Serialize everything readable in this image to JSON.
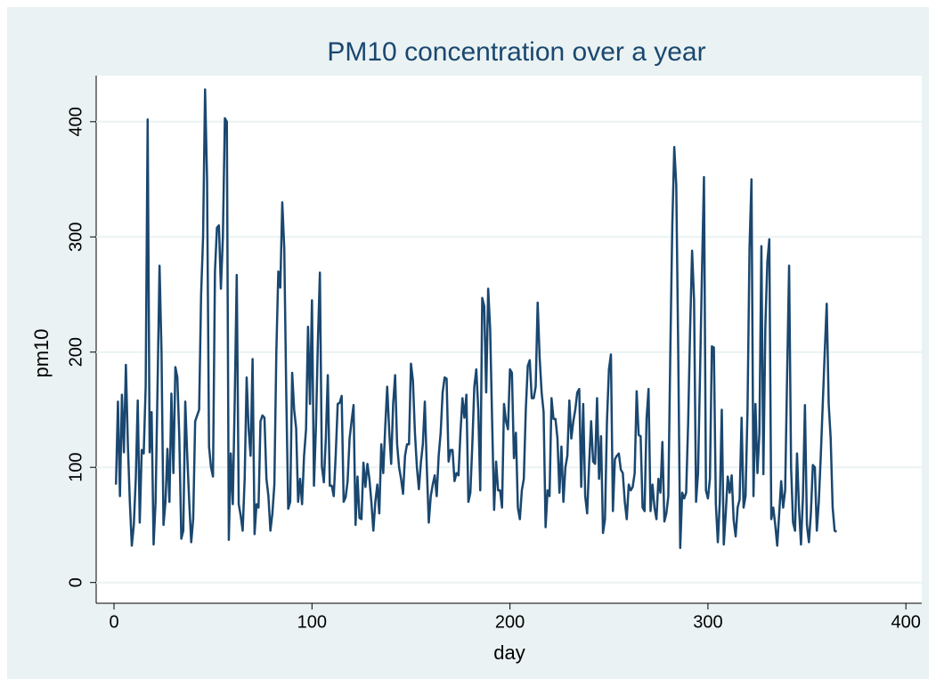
{
  "chart_data": {
    "type": "line",
    "title": "PM10 concentration over a year",
    "x_label": "day",
    "y_label": "pm10",
    "x": [
      1,
      2,
      3,
      4,
      5,
      6,
      7,
      8,
      9,
      10,
      11,
      12,
      13,
      14,
      15,
      16,
      17,
      18,
      19,
      20,
      21,
      22,
      23,
      24,
      25,
      26,
      27,
      28,
      29,
      30,
      31,
      32,
      33,
      34,
      35,
      36,
      37,
      38,
      39,
      40,
      41,
      42,
      43,
      44,
      45,
      46,
      47,
      48,
      49,
      50,
      51,
      52,
      53,
      54,
      55,
      56,
      57,
      58,
      59,
      60,
      61,
      62,
      63,
      64,
      65,
      66,
      67,
      68,
      69,
      70,
      71,
      72,
      73,
      74,
      75,
      76,
      77,
      78,
      79,
      80,
      81,
      82,
      83,
      84,
      85,
      86,
      87,
      88,
      89,
      90,
      91,
      92,
      93,
      94,
      95,
      96,
      97,
      98,
      99,
      100,
      101,
      102,
      103,
      104,
      105,
      106,
      107,
      108,
      109,
      110,
      111,
      112,
      113,
      114,
      115,
      116,
      117,
      118,
      119,
      120,
      121,
      122,
      123,
      124,
      125,
      126,
      127,
      128,
      129,
      130,
      131,
      132,
      133,
      134,
      135,
      136,
      137,
      138,
      139,
      140,
      141,
      142,
      143,
      144,
      145,
      146,
      147,
      148,
      149,
      150,
      151,
      152,
      153,
      154,
      155,
      156,
      157,
      158,
      159,
      160,
      161,
      162,
      163,
      164,
      165,
      166,
      167,
      168,
      169,
      170,
      171,
      172,
      173,
      174,
      175,
      176,
      177,
      178,
      179,
      180,
      181,
      182,
      183,
      184,
      185,
      186,
      187,
      188,
      189,
      190,
      191,
      192,
      193,
      194,
      195,
      196,
      197,
      198,
      199,
      200,
      201,
      202,
      203,
      204,
      205,
      206,
      207,
      208,
      209,
      210,
      211,
      212,
      213,
      214,
      215,
      216,
      217,
      218,
      219,
      220,
      221,
      222,
      223,
      224,
      225,
      226,
      227,
      228,
      229,
      230,
      231,
      232,
      233,
      234,
      235,
      236,
      237,
      238,
      239,
      240,
      241,
      242,
      243,
      244,
      245,
      246,
      247,
      248,
      249,
      250,
      251,
      252,
      253,
      254,
      255,
      256,
      257,
      258,
      259,
      260,
      261,
      262,
      263,
      264,
      265,
      266,
      267,
      268,
      269,
      270,
      271,
      272,
      273,
      274,
      275,
      276,
      277,
      278,
      279,
      280,
      281,
      282,
      283,
      284,
      285,
      286,
      287,
      288,
      289,
      290,
      291,
      292,
      293,
      294,
      295,
      296,
      297,
      298,
      299,
      300,
      301,
      302,
      303,
      304,
      305,
      306,
      307,
      308,
      309,
      310,
      311,
      312,
      313,
      314,
      315,
      316,
      317,
      318,
      319,
      320,
      321,
      322,
      323,
      324,
      325,
      326,
      327,
      328,
      329,
      330,
      331,
      332,
      333,
      334,
      335,
      336,
      337,
      338,
      339,
      340,
      341,
      342,
      343,
      344,
      345,
      346,
      347,
      348,
      349,
      350,
      351,
      352,
      353,
      354,
      355,
      356,
      357,
      358,
      359,
      360,
      361,
      362,
      363,
      364,
      365
    ],
    "series": [
      {
        "name": "pm10",
        "color": "#1a476f",
        "values": [
          85,
          157,
          75,
          163,
          113,
          189,
          120,
          70,
          32,
          50,
          90,
          158,
          52,
          115,
          112,
          170,
          402,
          113,
          148,
          33,
          70,
          170,
          275,
          200,
          50,
          70,
          116,
          70,
          164,
          95,
          187,
          178,
          125,
          38,
          45,
          157,
          110,
          70,
          35,
          55,
          140,
          145,
          150,
          250,
          300,
          428,
          350,
          118,
          100,
          92,
          270,
          308,
          310,
          255,
          300,
          403,
          400,
          37,
          112,
          68,
          160,
          267,
          68,
          58,
          45,
          90,
          178,
          133,
          110,
          194,
          42,
          68,
          65,
          140,
          145,
          143,
          90,
          75,
          45,
          60,
          85,
          200,
          270,
          256,
          330,
          290,
          165,
          64,
          70,
          182,
          150,
          134,
          70,
          90,
          68,
          110,
          133,
          222,
          155,
          245,
          84,
          135,
          210,
          269,
          101,
          87,
          125,
          180,
          84,
          84,
          75,
          111,
          155,
          156,
          162,
          70,
          74,
          88,
          125,
          140,
          154,
          50,
          92,
          56,
          55,
          104,
          83,
          103,
          90,
          70,
          45,
          70,
          85,
          60,
          120,
          95,
          135,
          170,
          132,
          103,
          155,
          180,
          120,
          100,
          90,
          77,
          110,
          120,
          120,
          190,
          175,
          130,
          100,
          81,
          104,
          120,
          157,
          100,
          52,
          75,
          85,
          93,
          75,
          110,
          130,
          165,
          178,
          177,
          105,
          115,
          115,
          88,
          95,
          93,
          130,
          160,
          143,
          163,
          70,
          78,
          120,
          170,
          185,
          150,
          80,
          247,
          240,
          165,
          255,
          220,
          140,
          63,
          105,
          80,
          80,
          65,
          155,
          140,
          133,
          185,
          182,
          108,
          130,
          65,
          55,
          80,
          90,
          150,
          188,
          193,
          160,
          160,
          170,
          243,
          195,
          165,
          148,
          48,
          80,
          75,
          160,
          142,
          142,
          125,
          78,
          118,
          70,
          100,
          110,
          158,
          125,
          140,
          150,
          165,
          168,
          83,
          155,
          75,
          60,
          103,
          140,
          105,
          103,
          160,
          90,
          127,
          43,
          55,
          140,
          185,
          198,
          62,
          107,
          110,
          112,
          98,
          95,
          70,
          55,
          85,
          80,
          83,
          95,
          166,
          128,
          127,
          65,
          62,
          142,
          168,
          62,
          85,
          65,
          55,
          90,
          78,
          122,
          53,
          60,
          75,
          200,
          310,
          378,
          345,
          200,
          30,
          78,
          73,
          78,
          138,
          220,
          288,
          245,
          70,
          95,
          180,
          270,
          352,
          80,
          73,
          90,
          205,
          204,
          68,
          35,
          70,
          150,
          33,
          60,
          92,
          78,
          93,
          54,
          40,
          65,
          72,
          143,
          65,
          75,
          150,
          290,
          350,
          75,
          155,
          95,
          130,
          292,
          94,
          222,
          278,
          298,
          55,
          65,
          50,
          32,
          60,
          88,
          65,
          80,
          180,
          275,
          100,
          52,
          45,
          112,
          65,
          33,
          75,
          154,
          50,
          35,
          60,
          102,
          100,
          45,
          70,
          110,
          155,
          200,
          242,
          155,
          125,
          65,
          45,
          44
        ]
      }
    ],
    "xlim": [
      -9,
      408
    ],
    "ylim": [
      -18,
      440
    ],
    "xticks": [
      0,
      100,
      200,
      300,
      400
    ],
    "yticks": [
      0,
      100,
      200,
      300,
      400
    ],
    "grid": true
  }
}
